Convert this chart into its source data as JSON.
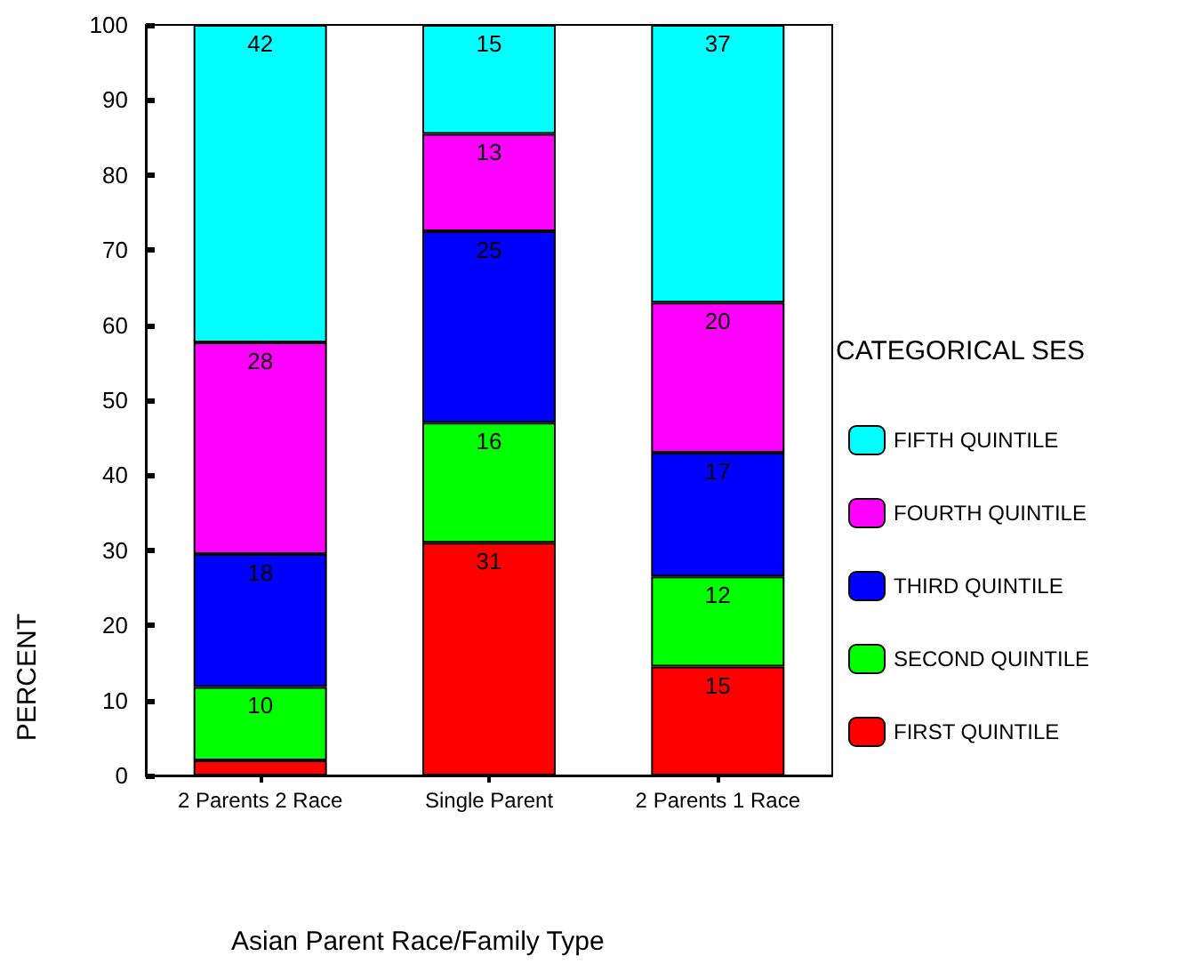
{
  "chart_data": {
    "type": "bar",
    "stacked": true,
    "xlabel": "Asian Parent Race/Family Type",
    "ylabel": "PERCENT",
    "legend_title": "CATEGORICAL SES",
    "legend": "right",
    "grid": false,
    "categories": [
      "2 Parents 2 Race",
      "Single Parent",
      "2 Parents 1 Race"
    ],
    "ylim": [
      0,
      100
    ],
    "yticks": [
      0,
      10,
      20,
      30,
      40,
      50,
      60,
      70,
      80,
      90,
      100
    ],
    "series": [
      {
        "name": "FIRST QUINTILE",
        "color": "#ff0000",
        "values": [
          2,
          31,
          14.5
        ],
        "value_labels": [
          null,
          "31",
          "15"
        ]
      },
      {
        "name": "SECOND QUINTILE",
        "color": "#00ff00",
        "values": [
          9.8,
          16,
          12
        ],
        "value_labels": [
          "10",
          "16",
          "12"
        ]
      },
      {
        "name": "THIRD QUINTILE",
        "color": "#0000ff",
        "values": [
          17.7,
          25.5,
          16.5
        ],
        "value_labels": [
          "18",
          "25",
          "17"
        ]
      },
      {
        "name": "FOURTH QUINTILE",
        "color": "#ff00ff",
        "values": [
          28.2,
          13,
          20
        ],
        "value_labels": [
          "28",
          "13",
          "20"
        ]
      },
      {
        "name": "FIFTH QUINTILE",
        "color": "#00ffff",
        "values": [
          42.3,
          14.5,
          37
        ],
        "value_labels": [
          "42",
          "15",
          "37"
        ]
      }
    ]
  }
}
